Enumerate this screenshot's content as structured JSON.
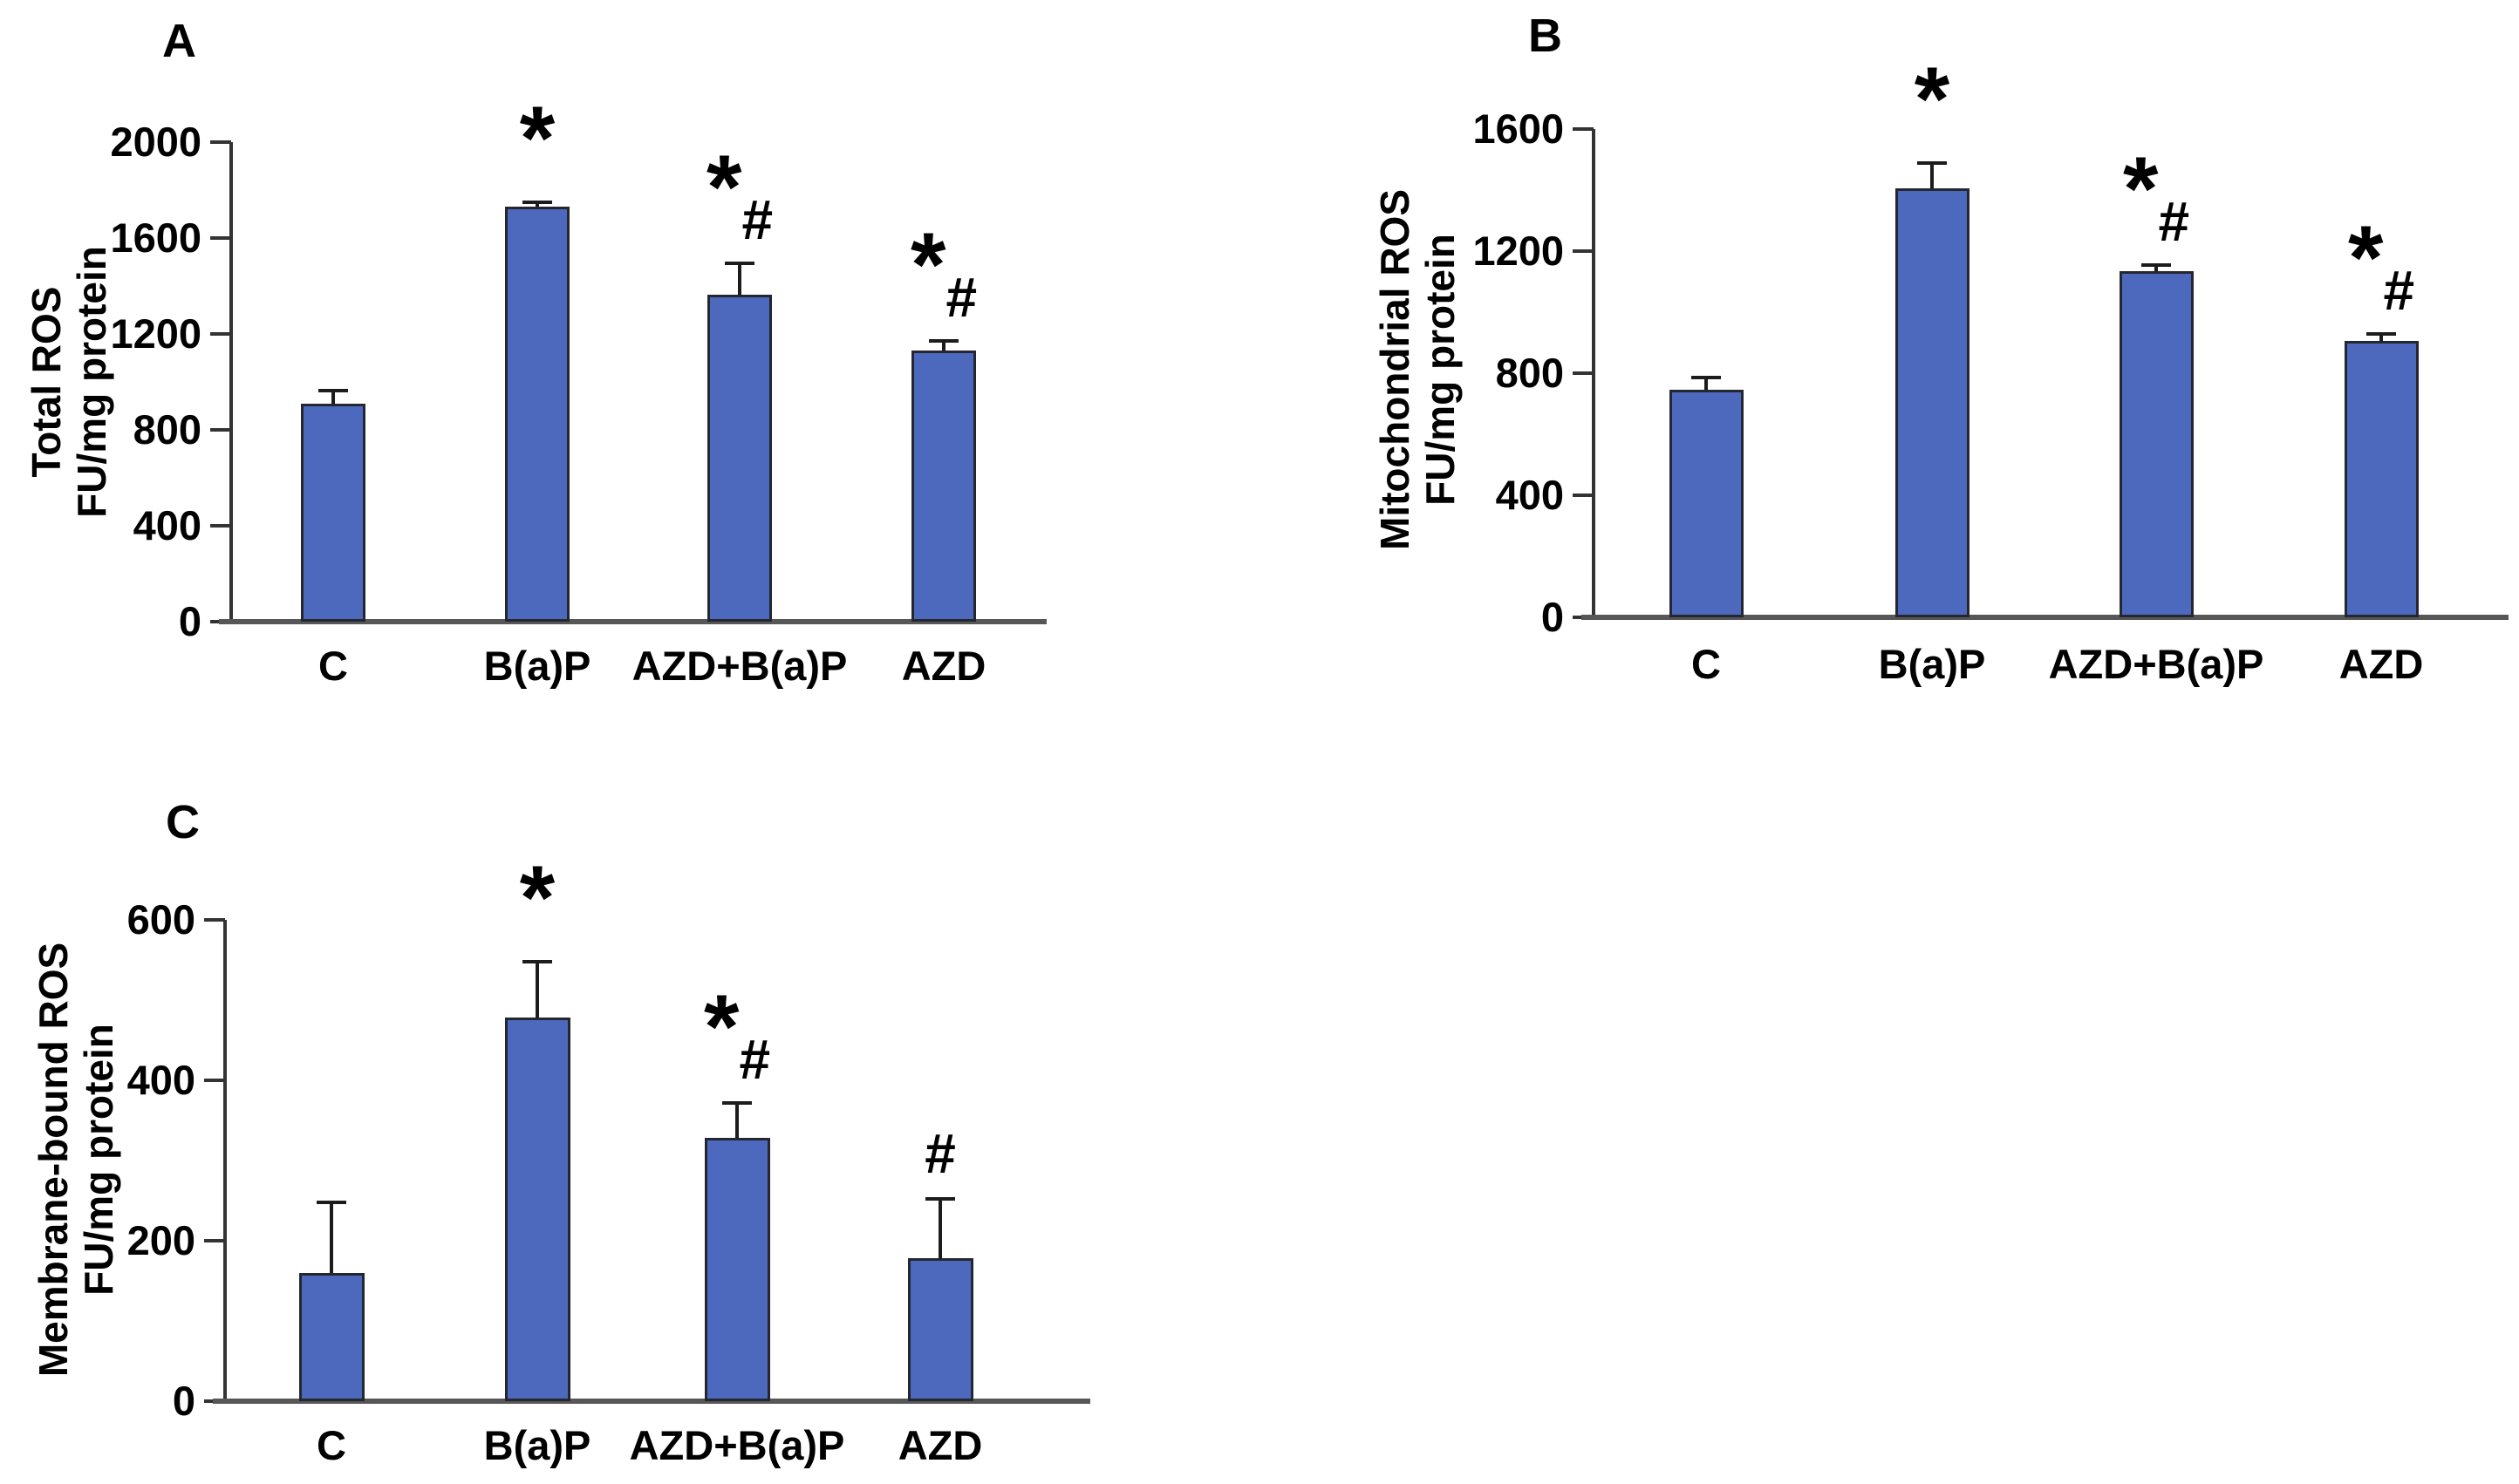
{
  "figure": {
    "background": "#ffffff",
    "bar_fill": "#4D69BD",
    "bar_border": "#24272F",
    "axis_color": "#333333",
    "baseline_color": "#575757",
    "error_color": "#1C1C1C",
    "text_color": "#000000"
  },
  "chart_data": [
    {
      "type": "bar",
      "panel_label": "A",
      "ylabel": "Total ROS FU/mg protein",
      "ylabel_lines": [
        "Total ROS",
        "FU/mg protein"
      ],
      "categories": [
        "C",
        "B(a)P",
        "AZD+B(a)P",
        "AZD"
      ],
      "values": [
        910,
        1730,
        1365,
        1130
      ],
      "errors_upper": [
        55,
        20,
        130,
        40
      ],
      "significance": [
        {},
        {
          "star": "*"
        },
        {
          "star": "*",
          "hash": "#"
        },
        {
          "star": "*",
          "hash": "#"
        }
      ],
      "ylim": [
        0,
        2000
      ],
      "yticks": [
        0,
        400,
        800,
        1200,
        1600,
        2000
      ],
      "grid": false,
      "legend": null
    },
    {
      "type": "bar",
      "panel_label": "B",
      "ylabel": "Mitochondrial ROS FU/mg protein",
      "ylabel_lines": [
        "Mitochondrial ROS",
        "FU/mg protein"
      ],
      "categories": [
        "C",
        "B(a)P",
        "AZD+B(a)P",
        "AZD"
      ],
      "values": [
        745,
        1405,
        1135,
        905
      ],
      "errors_upper": [
        40,
        85,
        20,
        25
      ],
      "significance": [
        {},
        {
          "star": "*"
        },
        {
          "star": "*",
          "hash": "#"
        },
        {
          "star": "*",
          "hash": "#"
        }
      ],
      "ylim": [
        0,
        1600
      ],
      "yticks": [
        0,
        400,
        800,
        1200,
        1600
      ],
      "grid": false,
      "legend": null
    },
    {
      "type": "bar",
      "panel_label": "C",
      "ylabel": "Membrane-bound ROS FU/mg protein",
      "ylabel_lines": [
        "Membrane-bound ROS",
        "FU/mg protein"
      ],
      "categories": [
        "C",
        "B(a)P",
        "AZD+B(a)P",
        "AZD"
      ],
      "values": [
        160,
        478,
        328,
        178
      ],
      "errors_upper": [
        88,
        70,
        44,
        74
      ],
      "significance": [
        {},
        {
          "star": "*"
        },
        {
          "star": "*",
          "hash": "#"
        },
        {
          "hash": "#"
        }
      ],
      "ylim": [
        0,
        600
      ],
      "yticks": [
        0,
        200,
        400,
        600
      ],
      "grid": false,
      "legend": null
    }
  ]
}
